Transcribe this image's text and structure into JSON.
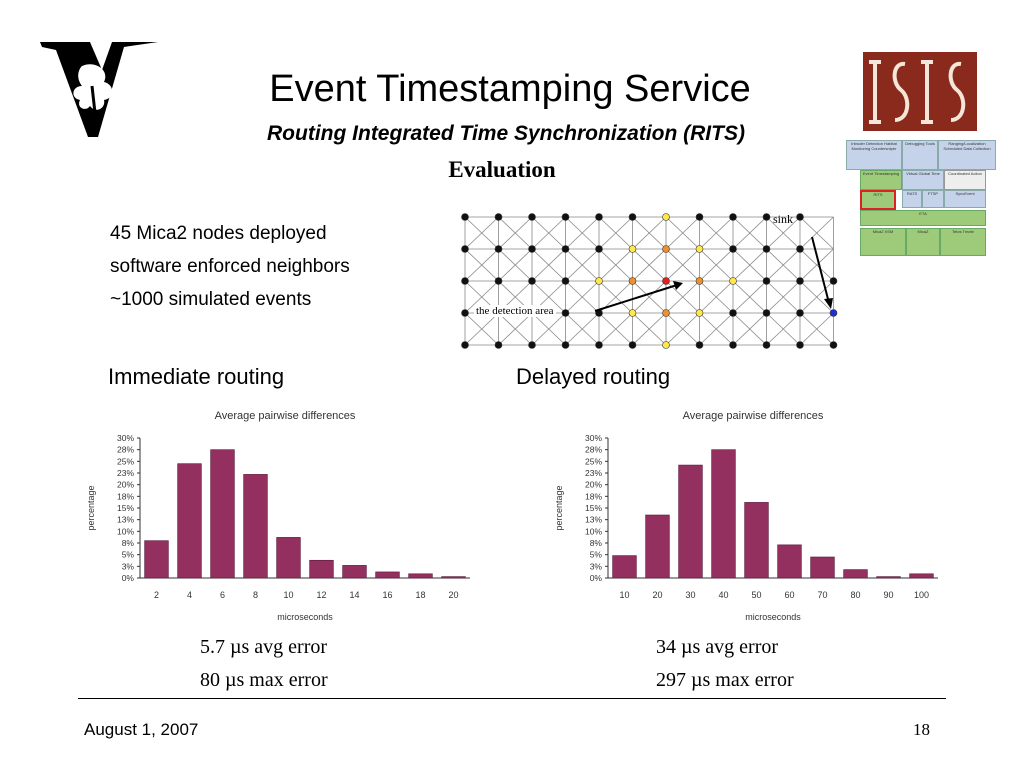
{
  "header": {
    "title": "Event Timestamping Service",
    "subtitle": "Routing Integrated Time Synchronization (RITS)",
    "section": "Evaluation"
  },
  "bullets": [
    "45 Mica2 nodes deployed",
    "software enforced neighbors",
    "~1000 simulated events"
  ],
  "network": {
    "sink_label": "sink",
    "area_label": "the detection area"
  },
  "isis_logo": {
    "text": "ISIS"
  },
  "stack": {
    "row1": [
      "Intruder Detection Habitat Monitoring Countersniper",
      "Debugging Tools",
      "Ranging/Localization Scheduled Data Collection"
    ],
    "row2": [
      "Event Timestamping",
      "Virtual Global Time",
      "Coordinated Action"
    ],
    "row3": [
      "RITS",
      "RATS",
      "FTSP",
      "SyncEvent"
    ],
    "row4": [
      "ETA"
    ],
    "row5": [
      "Mica2 XSM",
      "MicaZ",
      "Telos Tmote"
    ]
  },
  "sections": {
    "left": "Immediate routing",
    "right": "Delayed routing"
  },
  "errors": {
    "left": {
      "avg": "5.7 µs avg error",
      "max": "80 µs max error"
    },
    "right": {
      "avg": "34 µs avg error",
      "max": "297 µs max error"
    }
  },
  "footer": {
    "date": "August 1, 2007",
    "page": "18"
  },
  "colors": {
    "bar": "#943060",
    "axis": "#333333"
  },
  "chart_data": [
    {
      "type": "bar",
      "title": "Average pairwise differences",
      "xlabel": "microseconds",
      "ylabel": "percentage",
      "categories": [
        "2",
        "4",
        "6",
        "8",
        "10",
        "12",
        "14",
        "16",
        "18",
        "20"
      ],
      "values": [
        8,
        24.5,
        27.5,
        22.2,
        8.7,
        3.8,
        2.7,
        1.3,
        0.9,
        0.3
      ],
      "yticks": [
        "0%",
        "3%",
        "5%",
        "8%",
        "10%",
        "13%",
        "15%",
        "18%",
        "20%",
        "23%",
        "25%",
        "28%",
        "30%"
      ],
      "ylim": [
        0,
        30
      ]
    },
    {
      "type": "bar",
      "title": "Average pairwise differences",
      "xlabel": "microseconds",
      "ylabel": "percentage",
      "categories": [
        "10",
        "20",
        "30",
        "40",
        "50",
        "60",
        "70",
        "80",
        "90",
        "100"
      ],
      "values": [
        4.8,
        13.5,
        24.2,
        27.5,
        16.2,
        7.1,
        4.5,
        1.8,
        0.3,
        0.9
      ],
      "yticks": [
        "0%",
        "3%",
        "5%",
        "8%",
        "10%",
        "13%",
        "15%",
        "18%",
        "20%",
        "23%",
        "25%",
        "28%",
        "30%"
      ],
      "ylim": [
        0,
        30
      ]
    }
  ]
}
